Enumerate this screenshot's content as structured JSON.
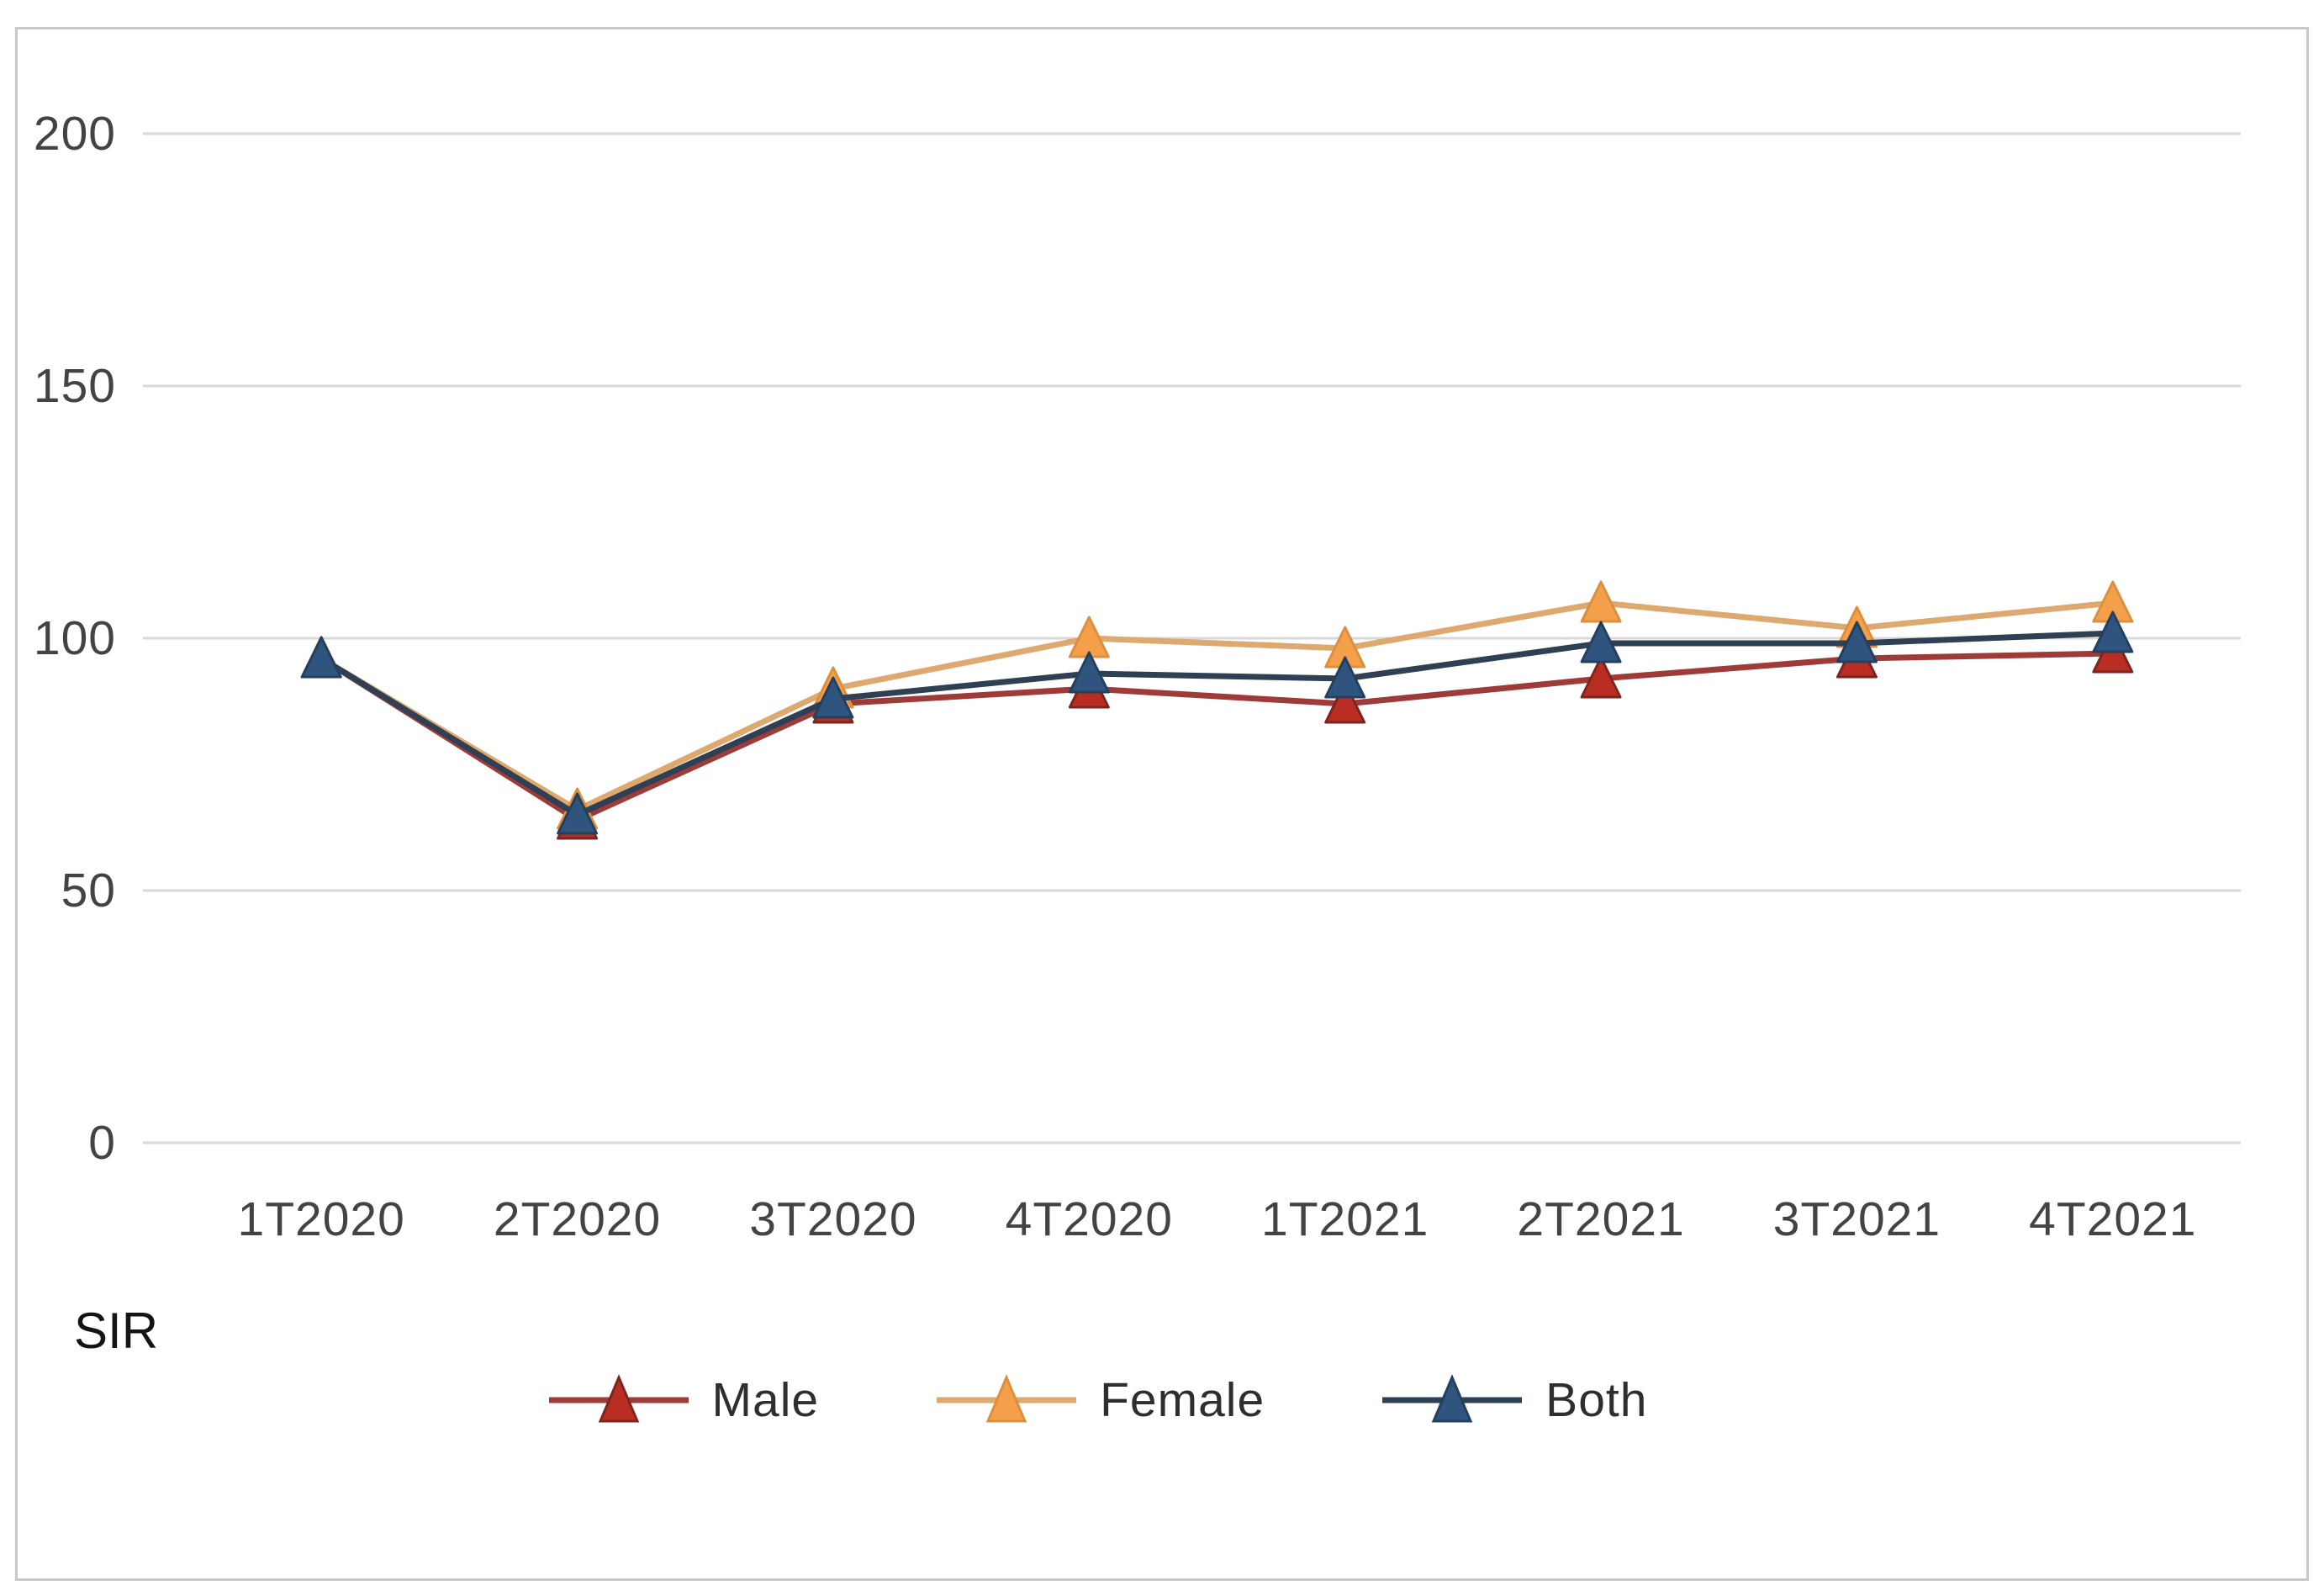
{
  "figure": {
    "background": "#FFFFFF",
    "border_color": "#C9C9C9",
    "gridline_color": "#D9D9D9",
    "tick_text_color": "#434343"
  },
  "chart_data": {
    "type": "line",
    "title": "",
    "axis_caption": "SIR",
    "categories": [
      "1T2020",
      "2T2020",
      "3T2020",
      "4T2020",
      "1T2021",
      "2T2021",
      "3T2021",
      "4T2021"
    ],
    "yticks": [
      200,
      150,
      100,
      50,
      0
    ],
    "ylim": [
      0,
      200
    ],
    "grid": "horizontal",
    "legend_position": "bottom",
    "marker_shape": "triangle-up",
    "series": [
      {
        "name": "Male",
        "values": [
          96,
          64,
          87,
          90,
          87,
          92,
          96,
          97
        ],
        "line_color": "#9E3B38",
        "marker_color": "#B92D22",
        "marker_edge": "#7E241E"
      },
      {
        "name": "Female",
        "values": [
          96,
          66,
          90,
          100,
          98,
          107,
          102,
          107
        ],
        "line_color": "#DDA96E",
        "marker_color": "#F4A04A",
        "marker_edge": "#DE8F3E"
      },
      {
        "name": "Both",
        "values": [
          96,
          65,
          88,
          93,
          92,
          99,
          99,
          101
        ],
        "line_color": "#2F4054",
        "marker_color": "#2F547E",
        "marker_edge": "#24405F"
      }
    ]
  }
}
